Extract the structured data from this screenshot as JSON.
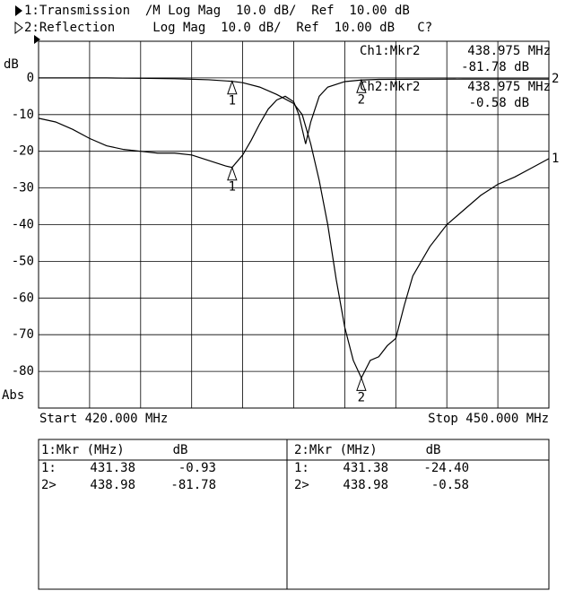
{
  "chart_data": {
    "type": "line",
    "header": [
      "1:Transmission  /M Log Mag  10.0 dB/  Ref  10.00 dB",
      "2:Reflection     Log Mag  10.0 dB/  Ref  10.00 dB   C?"
    ],
    "y_label": "dB",
    "y_scale_label": "Abs",
    "start_label": "Start 420.000 MHz",
    "stop_label": "Stop 450.000 MHz",
    "xlim": [
      420,
      450
    ],
    "ylim": [
      -90,
      10
    ],
    "yticks": [
      0,
      -10,
      -20,
      -30,
      -40,
      -50,
      -60,
      -70,
      -80
    ],
    "grid": true,
    "x_divisions": 10,
    "color": "#000000",
    "annotations": [
      [
        "Ch1:Mkr2",
        "438.975 MHz",
        "-81.78 dB"
      ],
      [
        "Ch2:Mkr2",
        "438.975 MHz",
        "-0.58 dB"
      ]
    ],
    "markers": [
      {
        "label": "1",
        "x": 431.38
      },
      {
        "label": "2",
        "x": 438.975
      }
    ],
    "series": [
      {
        "name": "Transmission",
        "label": "1",
        "color": "#000000",
        "x": [
          420,
          422,
          424,
          426,
          428,
          430,
          431.38,
          432,
          433,
          434,
          435,
          435.5,
          436,
          436.5,
          437,
          437.5,
          438,
          438.5,
          438.975,
          439.5,
          440,
          440.5,
          441,
          441.5,
          442,
          443,
          444,
          445,
          446,
          447,
          448,
          449,
          450
        ],
        "values": [
          0,
          0,
          0,
          -0.1,
          -0.2,
          -0.5,
          -0.93,
          -1.3,
          -2.5,
          -4.5,
          -7,
          -10,
          -18,
          -28,
          -40,
          -55,
          -68,
          -77,
          -81.78,
          -77,
          -76,
          -73,
          -71,
          -62,
          -54,
          -46,
          -40,
          -36,
          -32,
          -29,
          -27,
          -24.5,
          -22
        ]
      },
      {
        "name": "Reflection",
        "label": "2",
        "color": "#000000",
        "x": [
          420,
          421,
          422,
          423,
          424,
          425,
          426,
          427,
          428,
          429,
          430,
          431,
          431.38,
          432,
          432.5,
          433,
          433.5,
          434,
          434.5,
          435,
          435.3,
          435.7,
          436,
          436.5,
          437,
          438,
          438.975,
          440,
          445,
          450
        ],
        "values": [
          -11,
          -12,
          -14,
          -16.5,
          -18.5,
          -19.5,
          -20,
          -20.5,
          -20.5,
          -21,
          -22.5,
          -24,
          -24.4,
          -21,
          -17,
          -12.5,
          -8.5,
          -6,
          -5,
          -6.5,
          -10,
          -18,
          -12,
          -5,
          -2.5,
          -1,
          -0.58,
          -0.4,
          -0.3,
          -0.3
        ]
      }
    ]
  },
  "marker_table": [
    {
      "header": [
        "1:Mkr (MHz)",
        "dB"
      ],
      "rows": [
        [
          "1:",
          "431.38",
          "-0.93"
        ],
        [
          "2>",
          "438.98",
          "-81.78"
        ]
      ]
    },
    {
      "header": [
        "2:Mkr (MHz)",
        "dB"
      ],
      "rows": [
        [
          "1:",
          "431.38",
          "-24.40"
        ],
        [
          "2>",
          "438.98",
          "-0.58"
        ]
      ]
    }
  ]
}
